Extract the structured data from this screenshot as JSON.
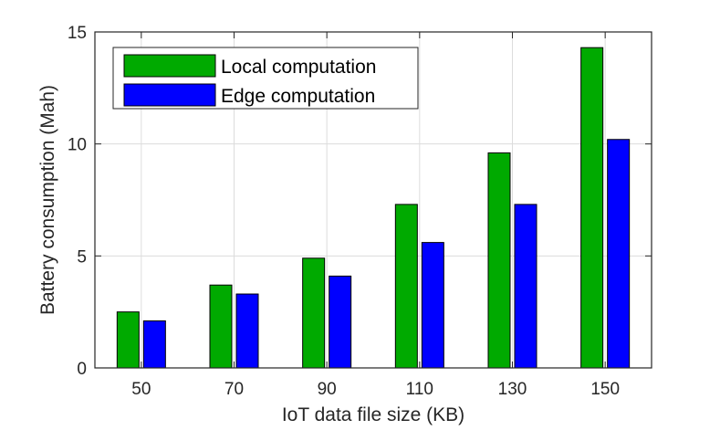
{
  "chart_data": {
    "type": "bar",
    "title": "",
    "xlabel": "IoT data file size (KB)",
    "ylabel": "Battery consumption (Mah)",
    "categories": [
      "50",
      "70",
      "90",
      "110",
      "130",
      "150"
    ],
    "ylim": [
      0,
      15
    ],
    "yticks": [
      "0",
      "5",
      "10",
      "15"
    ],
    "grid": true,
    "legend_position": "top-left",
    "series": [
      {
        "name": "Local computation",
        "color": "#00aa00",
        "values": [
          2.5,
          3.7,
          4.9,
          7.3,
          9.6,
          14.3
        ]
      },
      {
        "name": "Edge computation",
        "color": "#0000ff",
        "values": [
          2.1,
          3.3,
          4.1,
          5.6,
          7.3,
          10.2
        ]
      }
    ]
  }
}
